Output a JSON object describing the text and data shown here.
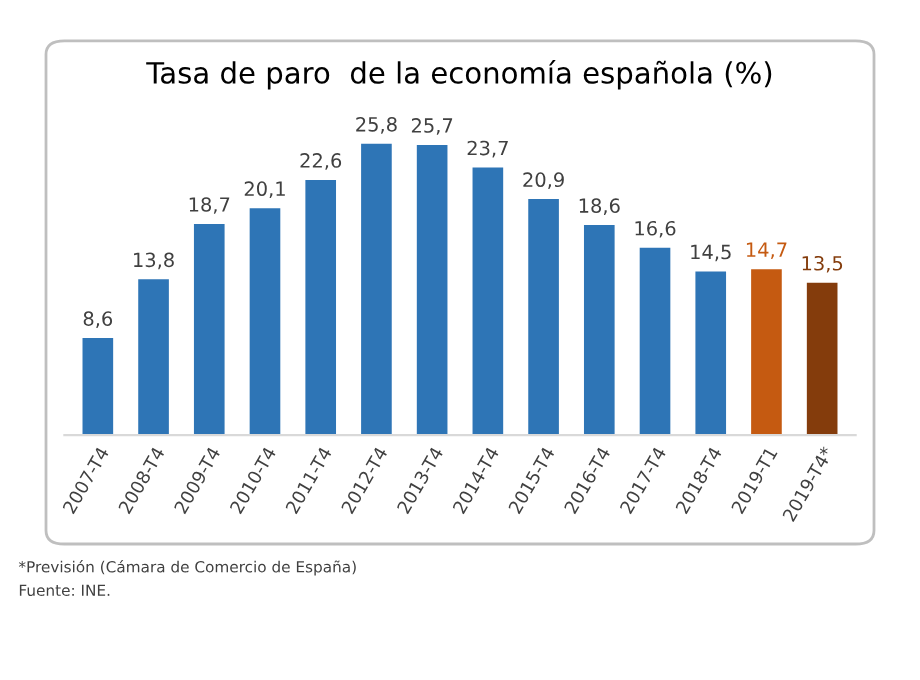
{
  "chart_data": {
    "type": "bar",
    "title": "Tasa de paro  de la economía española (%)",
    "categories": [
      "2007-T4",
      "2008-T4",
      "2009-T4",
      "2010-T4",
      "2011-T4",
      "2012-T4",
      "2013-T4",
      "2014-T4",
      "2015-T4",
      "2016-T4",
      "2017-T4",
      "2018-T4",
      "2019-T1",
      "2019-T4*"
    ],
    "values": [
      8.6,
      13.8,
      18.7,
      20.1,
      22.6,
      25.8,
      25.7,
      23.7,
      20.9,
      18.6,
      16.6,
      14.5,
      14.7,
      13.5
    ],
    "value_labels": [
      "8,6",
      "13,8",
      "18,7",
      "20,1",
      "22,6",
      "25,8",
      "25,7",
      "23,7",
      "20,9",
      "18,6",
      "16,6",
      "14,5",
      "14,7",
      "13,5"
    ],
    "colors": [
      "#2e75b6",
      "#2e75b6",
      "#2e75b6",
      "#2e75b6",
      "#2e75b6",
      "#2e75b6",
      "#2e75b6",
      "#2e75b6",
      "#2e75b6",
      "#2e75b6",
      "#2e75b6",
      "#2e75b6",
      "#c55a11",
      "#843c0c"
    ],
    "annotations": [
      "*Previsión (Cámara de Comercio de España)",
      "Fuente: INE."
    ]
  }
}
